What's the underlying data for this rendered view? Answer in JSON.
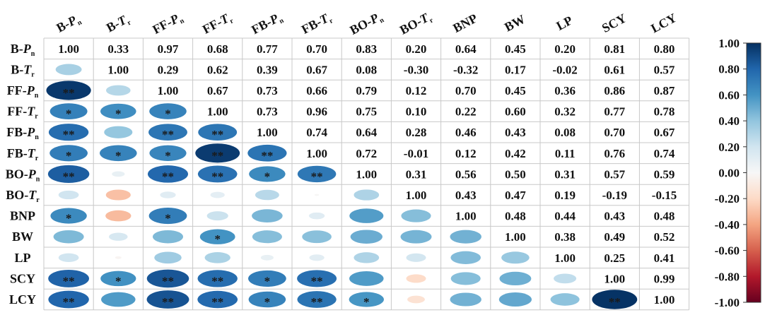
{
  "chart_data": {
    "type": "correlogram",
    "variables": [
      "B-Pn",
      "B-Tr",
      "FF-Pn",
      "FF-Tr",
      "FB-Pn",
      "FB-Tr",
      "BO-Pn",
      "BO-Tr",
      "BNP",
      "BW",
      "LP",
      "SCY",
      "LCY"
    ],
    "labels": [
      {
        "base": "B-",
        "sym": "P",
        "sub": "n"
      },
      {
        "base": "B-",
        "sym": "T",
        "sub": "r"
      },
      {
        "base": "FF-",
        "sym": "P",
        "sub": "n"
      },
      {
        "base": "FF-",
        "sym": "T",
        "sub": "r"
      },
      {
        "base": "FB-",
        "sym": "P",
        "sub": "n"
      },
      {
        "base": "FB-",
        "sym": "T",
        "sub": "r"
      },
      {
        "base": "BO-",
        "sym": "P",
        "sub": "n"
      },
      {
        "base": "BO-",
        "sym": "T",
        "sub": "r"
      },
      {
        "base": "BNP",
        "sym": "",
        "sub": ""
      },
      {
        "base": "BW",
        "sym": "",
        "sub": ""
      },
      {
        "base": "LP",
        "sym": "",
        "sub": ""
      },
      {
        "base": "SCY",
        "sym": "",
        "sub": ""
      },
      {
        "base": "LCY",
        "sym": "",
        "sub": ""
      }
    ],
    "upper_values": [
      [
        null,
        "0.33",
        "0.97",
        "0.68",
        "0.77",
        "0.70",
        "0.83",
        "0.20",
        "0.64",
        "0.45",
        "0.20",
        "0.81",
        "0.80"
      ],
      [
        null,
        null,
        "0.29",
        "0.62",
        "0.39",
        "0.67",
        "0.08",
        "-0.30",
        "-0.32",
        "0.17",
        "-0.02",
        "0.61",
        "0.57"
      ],
      [
        null,
        null,
        null,
        "0.67",
        "0.73",
        "0.66",
        "0.79",
        "0.12",
        "0.70",
        "0.45",
        "0.36",
        "0.86",
        "0.87"
      ],
      [
        null,
        null,
        null,
        null,
        "0.73",
        "0.96",
        "0.75",
        "0.10",
        "0.22",
        "0.60",
        "0.32",
        "0.77",
        "0.78"
      ],
      [
        null,
        null,
        null,
        null,
        null,
        "0.74",
        "0.64",
        "0.28",
        "0.46",
        "0.43",
        "0.08",
        "0.70",
        "0.67"
      ],
      [
        null,
        null,
        null,
        null,
        null,
        null,
        "0.72",
        "-0.01",
        "0.12",
        "0.42",
        "0.11",
        "0.76",
        "0.74"
      ],
      [
        null,
        null,
        null,
        null,
        null,
        null,
        null,
        "0.31",
        "0.56",
        "0.50",
        "0.31",
        "0.57",
        "0.59"
      ],
      [
        null,
        null,
        null,
        null,
        null,
        null,
        null,
        null,
        "0.43",
        "0.47",
        "0.19",
        "-0.19",
        "-0.15"
      ],
      [
        null,
        null,
        null,
        null,
        null,
        null,
        null,
        null,
        null,
        "0.48",
        "0.44",
        "0.43",
        "0.48"
      ],
      [
        null,
        null,
        null,
        null,
        null,
        null,
        null,
        null,
        null,
        null,
        "0.38",
        "0.49",
        "0.52"
      ],
      [
        null,
        null,
        null,
        null,
        null,
        null,
        null,
        null,
        null,
        null,
        null,
        "0.25",
        "0.41"
      ],
      [
        null,
        null,
        null,
        null,
        null,
        null,
        null,
        null,
        null,
        null,
        null,
        null,
        "0.99"
      ],
      [
        null,
        null,
        null,
        null,
        null,
        null,
        null,
        null,
        null,
        null,
        null,
        null,
        null
      ]
    ],
    "diagonal": "1.00",
    "lower_stars": [
      [],
      [
        ""
      ],
      [
        "**",
        ""
      ],
      [
        "*",
        "*",
        "*"
      ],
      [
        "**",
        "",
        "**",
        "**"
      ],
      [
        "*",
        "*",
        "*",
        "**",
        "**"
      ],
      [
        "**",
        "",
        "**",
        "**",
        "*",
        "**"
      ],
      [
        "",
        "",
        "",
        "",
        "",
        "",
        ""
      ],
      [
        "*",
        "",
        "*",
        "",
        "",
        "",
        "",
        ""
      ],
      [
        "",
        "",
        "",
        "*",
        "",
        "",
        "",
        "",
        ""
      ],
      [
        "",
        "",
        "",
        "",
        "",
        "",
        "",
        "",
        "",
        ""
      ],
      [
        "**",
        "*",
        "**",
        "**",
        "*",
        "**",
        "",
        "",
        "",
        "",
        ""
      ],
      [
        "**",
        "",
        "**",
        "**",
        "*",
        "**",
        "*",
        "",
        "",
        "",
        "",
        "**"
      ]
    ],
    "lower_hidden": [
      [
        11,
        12
      ]
    ],
    "colorbar": {
      "ticks": [
        "1.00",
        "0.80",
        "0.60",
        "0.40",
        "0.20",
        "0.00",
        "-0.20",
        "-0.40",
        "-0.60",
        "-0.80",
        "-1.00"
      ],
      "range": [
        -1,
        1
      ],
      "colors": [
        "#67001f",
        "#b2182b",
        "#d6604d",
        "#f4a582",
        "#fddbc7",
        "#f7f7f7",
        "#d1e5f0",
        "#92c5de",
        "#4393c3",
        "#2166ac",
        "#053061"
      ]
    }
  }
}
